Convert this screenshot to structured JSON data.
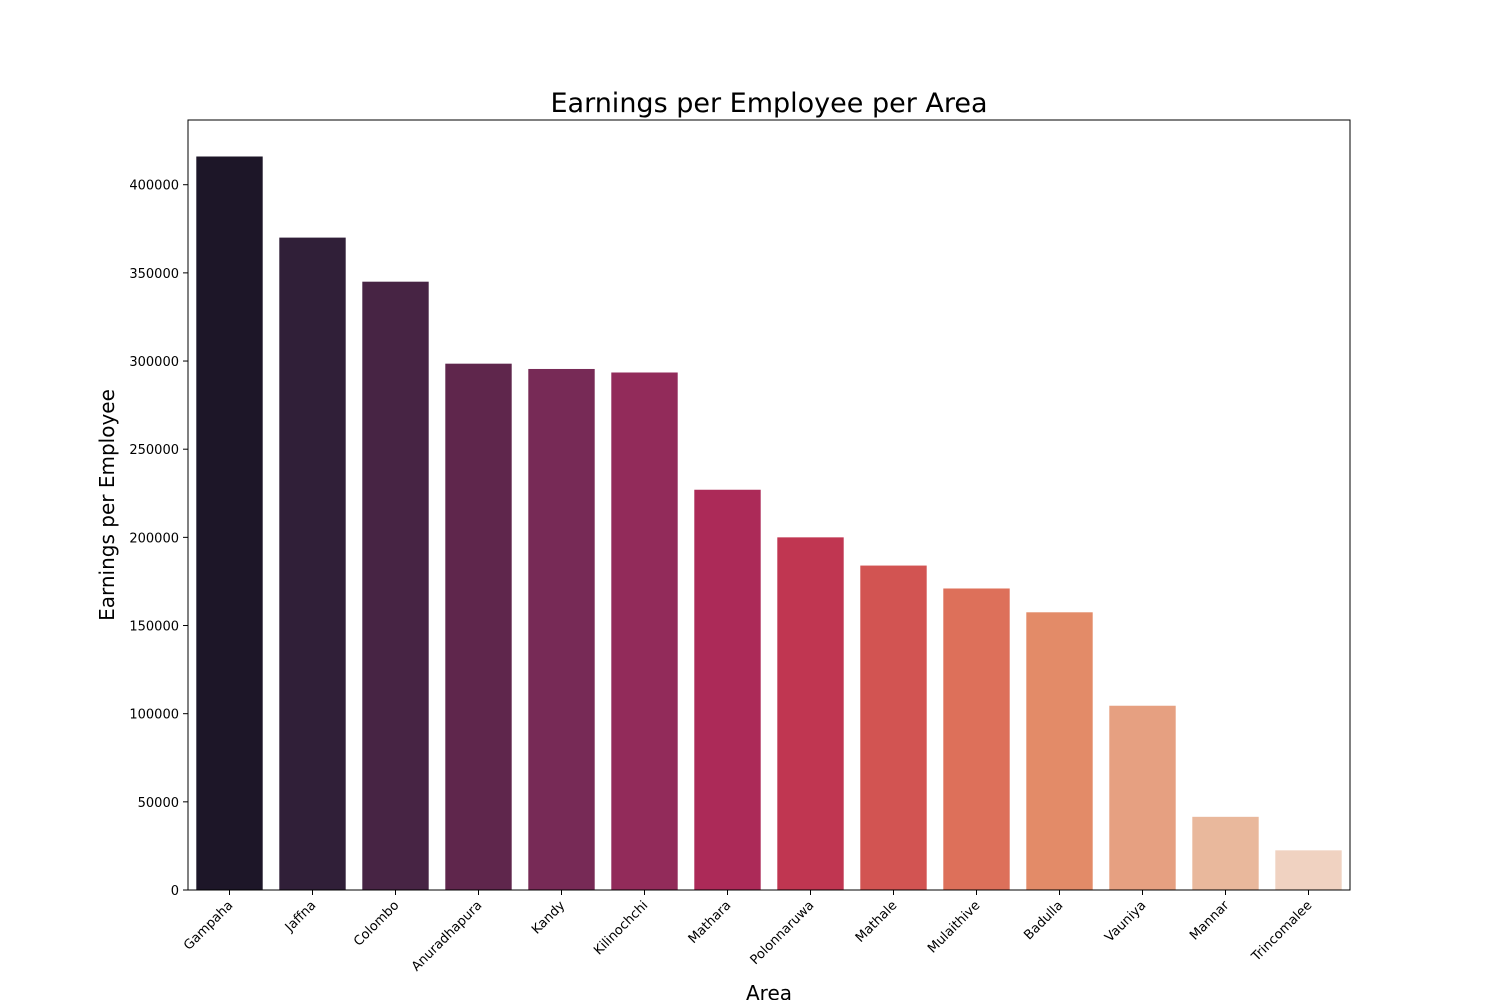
{
  "chart_data": {
    "type": "bar",
    "title": "Earnings per Employee per Area",
    "xlabel": "Area",
    "ylabel": "Earnings per Employee",
    "categories": [
      "Gampaha",
      "Jaffna",
      "Colombo",
      "Anuradhapura",
      "Kandy",
      "Kilinochchi",
      "Mathara",
      "Polonnaruwa",
      "Mathale",
      "Mulaithive",
      "Badulla",
      "Vauniya",
      "Mannar",
      "Trincomalee"
    ],
    "values": [
      416000,
      370000,
      345000,
      298500,
      295500,
      293500,
      227000,
      200000,
      184000,
      171000,
      157500,
      104500,
      41500,
      22500
    ],
    "colors": [
      "#1d1628",
      "#301f38",
      "#472444",
      "#5f264c",
      "#772a56",
      "#922b5a",
      "#ac2a58",
      "#c03651",
      "#d25452",
      "#dd705a",
      "#e38b68",
      "#e6a081",
      "#e9b89c",
      "#f0d2c1"
    ],
    "yticks": [
      0,
      50000,
      100000,
      150000,
      200000,
      250000,
      300000,
      350000,
      400000
    ],
    "ylim": [
      0,
      436700
    ],
    "grid": false,
    "legend": "none"
  }
}
